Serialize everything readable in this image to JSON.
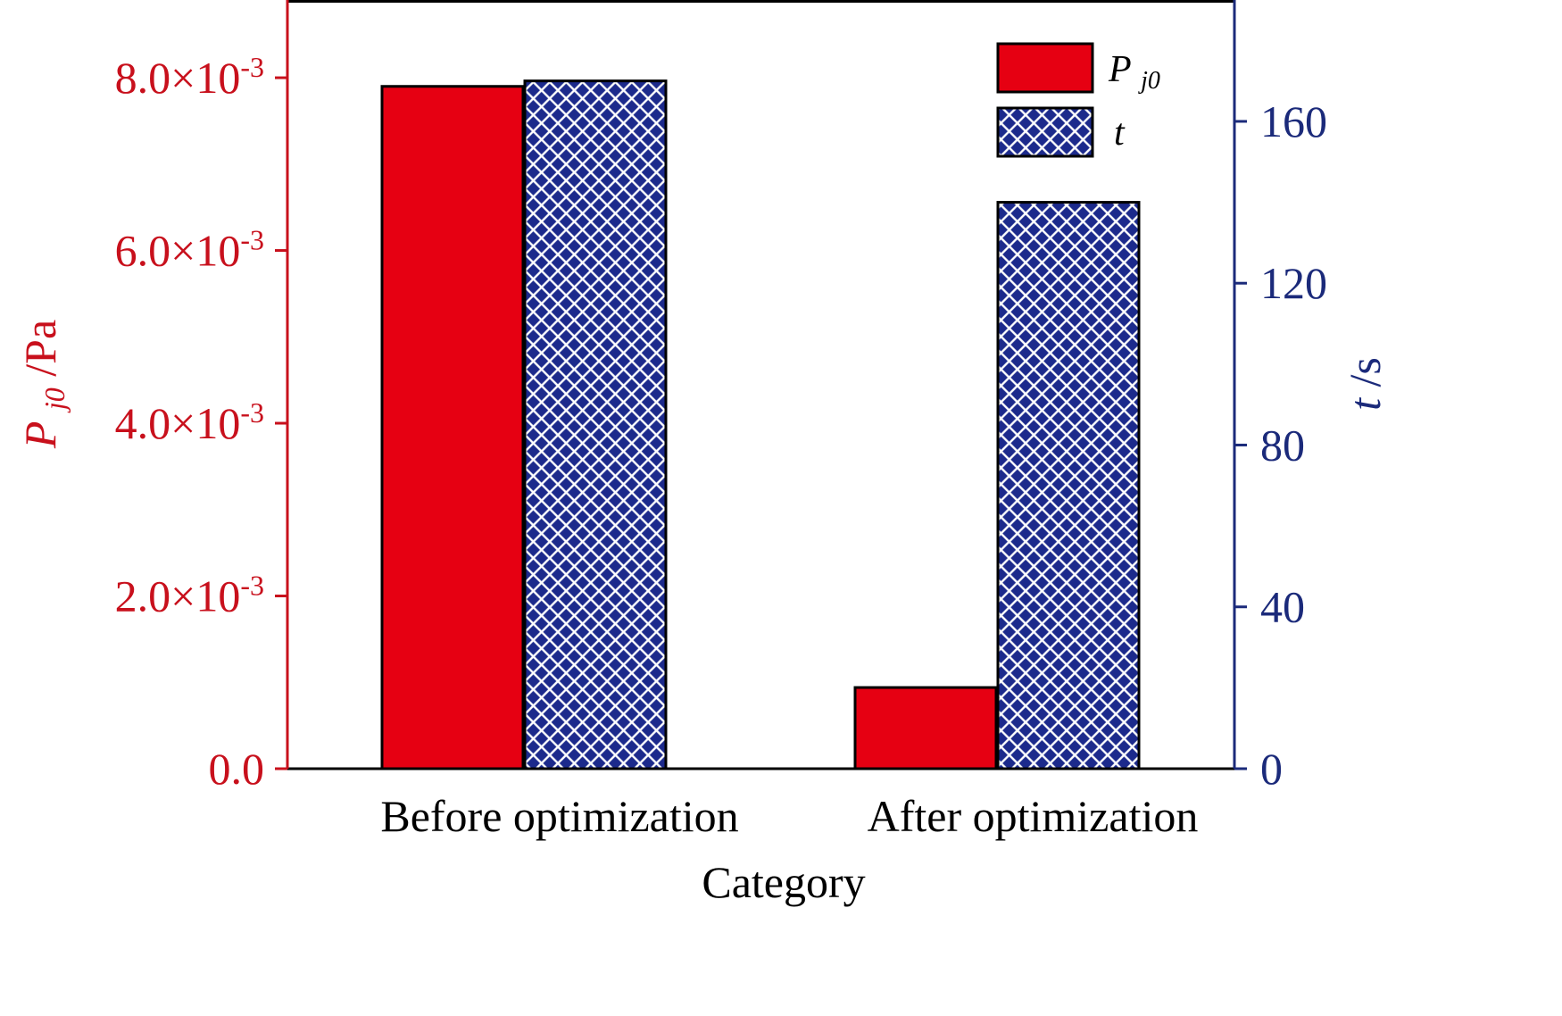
{
  "chart_data": {
    "type": "bar",
    "categories": [
      "Before optimization",
      "After optimization"
    ],
    "xlabel": "Category",
    "y_left": {
      "label_main": "P",
      "label_sub": "j0",
      "label_unit": "/Pa",
      "ylim": [
        0,
        0.0089
      ],
      "ticks": [
        {
          "value": 0,
          "mantissa": "0.0",
          "exponent": ""
        },
        {
          "value": 0.002,
          "mantissa": "2.0×10",
          "exponent": "-3"
        },
        {
          "value": 0.004,
          "mantissa": "4.0×10",
          "exponent": "-3"
        },
        {
          "value": 0.006,
          "mantissa": "6.0×10",
          "exponent": "-3"
        },
        {
          "value": 0.008,
          "mantissa": "8.0×10",
          "exponent": "-3"
        }
      ],
      "color": "#c8101c"
    },
    "y_right": {
      "label_main": "t",
      "label_unit": "/s",
      "ylim": [
        0,
        190
      ],
      "ticks": [
        {
          "value": 0,
          "label": "0"
        },
        {
          "value": 40,
          "label": "40"
        },
        {
          "value": 80,
          "label": "80"
        },
        {
          "value": 120,
          "label": "120"
        },
        {
          "value": 160,
          "label": "160"
        }
      ],
      "color": "#1b2a7a"
    },
    "series": [
      {
        "name_main": "P",
        "name_sub": "j0",
        "axis": "left",
        "fill": "#e60012",
        "pattern": "solid",
        "values": [
          0.0079,
          0.00094
        ]
      },
      {
        "name_main": "t",
        "name_sub": "",
        "axis": "right",
        "fill": "#1c2a8c",
        "pattern": "crosshatch",
        "values": [
          170,
          140
        ]
      }
    ],
    "legend_position": "top-right",
    "grid": false
  }
}
